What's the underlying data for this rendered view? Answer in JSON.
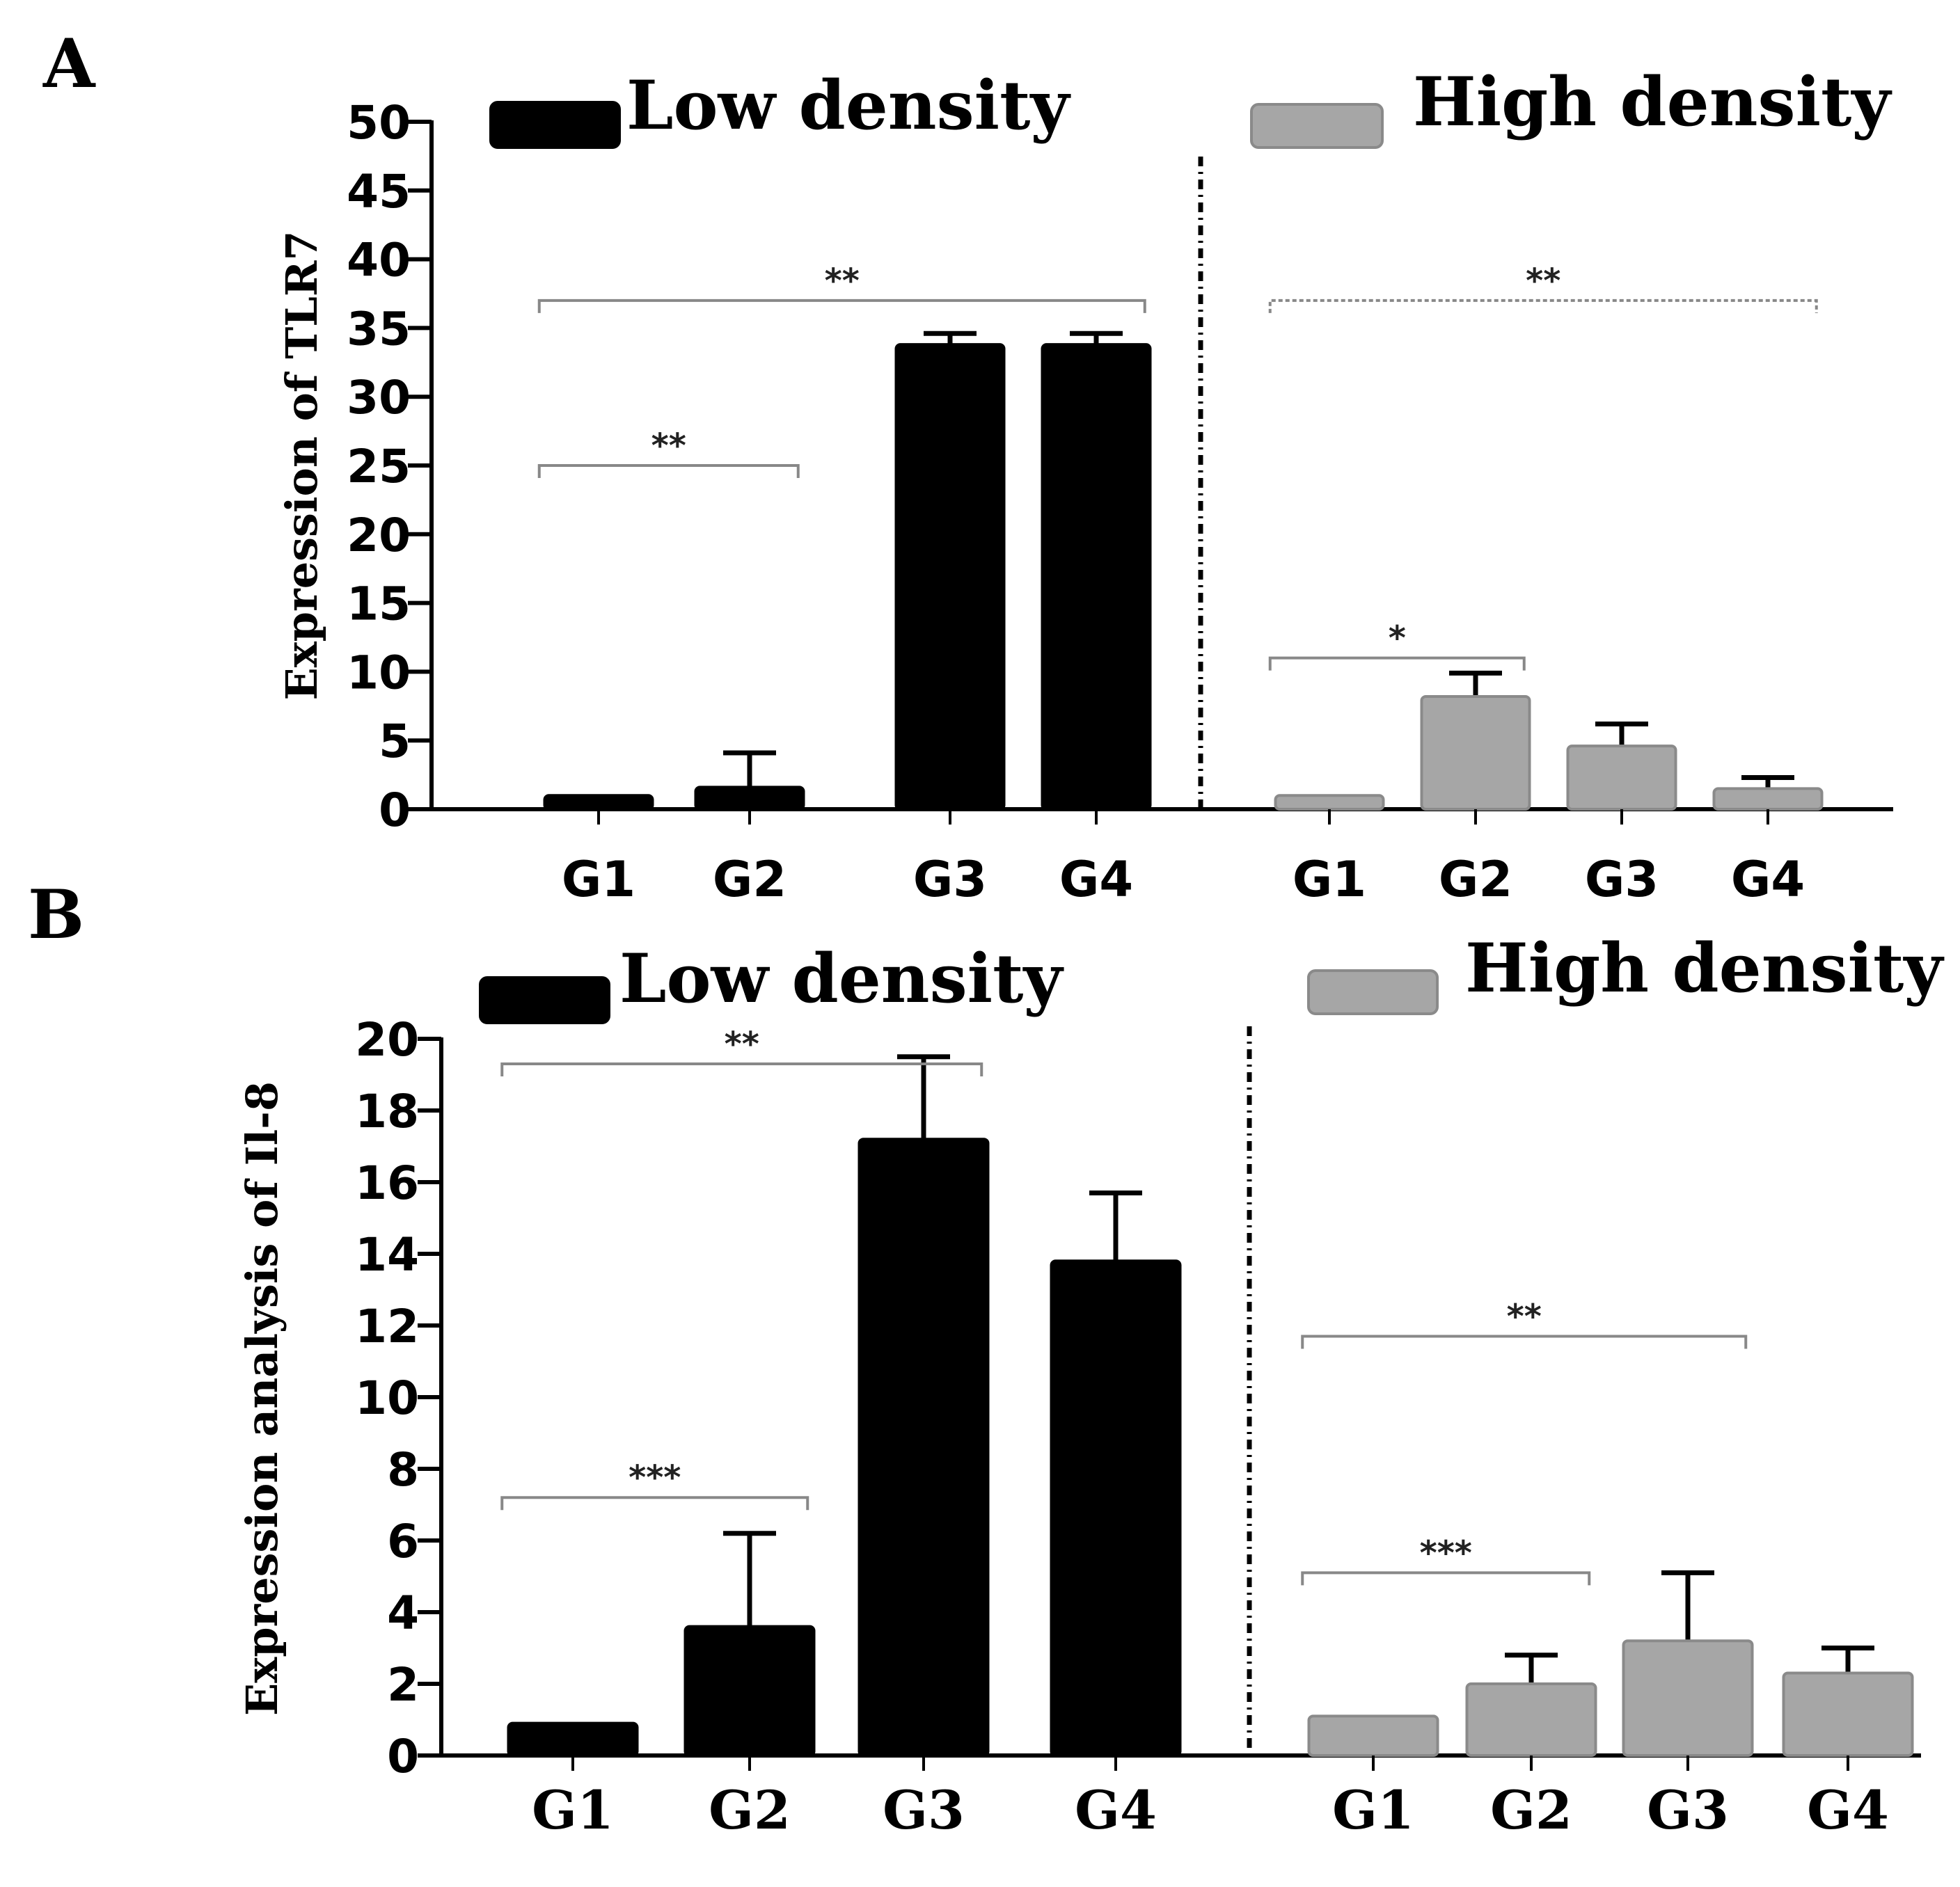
{
  "figure": {
    "colors": {
      "low": "#000000",
      "high": "#a6a6a6",
      "axis": "#000000",
      "bracket": "#888888"
    }
  },
  "chart_data": [
    {
      "id": "A",
      "type": "bar",
      "panel_label": "A",
      "ylabel": "Expression  of TLR7",
      "ylim": [
        0,
        50
      ],
      "yticks": [
        "0",
        "5",
        "10",
        "15",
        "20",
        "25",
        "30",
        "35",
        "40",
        "45",
        "50"
      ],
      "legend": [
        {
          "name": "Low density",
          "color": "#000000"
        },
        {
          "name": "High density",
          "color": "#a6a6a6"
        }
      ],
      "series": [
        {
          "name": "Low density",
          "categories": [
            "G1",
            "G2",
            "G3",
            "G4"
          ],
          "values": [
            1.0,
            1.6,
            33.8,
            33.8
          ],
          "errors": [
            0.0,
            2.5,
            0.8,
            0.8
          ]
        },
        {
          "name": "High density",
          "categories": [
            "G1",
            "G2",
            "G3",
            "G4"
          ],
          "values": [
            1.0,
            8.2,
            4.6,
            1.5
          ],
          "errors": [
            0.0,
            1.7,
            1.6,
            0.8
          ]
        }
      ],
      "significance": [
        {
          "series": "Low density",
          "from": "G1",
          "to": "G4",
          "level": 37,
          "label": "**"
        },
        {
          "series": "Low density",
          "from": "G1",
          "to": "G2",
          "level": 25,
          "label": "**"
        },
        {
          "series": "High density",
          "from": "G1",
          "to": "G4",
          "level": 37,
          "label": "**"
        },
        {
          "series": "High density",
          "from": "G1",
          "to": "G2",
          "level": 11,
          "label": "*"
        }
      ]
    },
    {
      "id": "B",
      "type": "bar",
      "panel_label": "B",
      "ylabel": "Expression analysis of Il-8",
      "ylim": [
        0,
        20
      ],
      "yticks": [
        "0",
        "2",
        "4",
        "6",
        "8",
        "10",
        "12",
        "14",
        "16",
        "18",
        "20"
      ],
      "legend": [
        {
          "name": "Low density",
          "color": "#000000"
        },
        {
          "name": "High density",
          "color": "#a6a6a6"
        }
      ],
      "series": [
        {
          "name": "Low density",
          "categories": [
            "G1",
            "G2",
            "G3",
            "G4"
          ],
          "values": [
            0.9,
            3.6,
            17.2,
            13.8
          ],
          "errors": [
            0.0,
            2.6,
            2.3,
            1.9
          ]
        },
        {
          "name": "High density",
          "categories": [
            "G1",
            "G2",
            "G3",
            "G4"
          ],
          "values": [
            1.1,
            2.0,
            3.2,
            2.3
          ],
          "errors": [
            0.0,
            0.8,
            1.9,
            0.7
          ]
        }
      ],
      "significance": [
        {
          "series": "Low density",
          "from": "G1",
          "to": "G3",
          "level": 19.3,
          "label": "**"
        },
        {
          "series": "Low density",
          "from": "G1",
          "to": "G2",
          "level": 7.2,
          "label": "***"
        },
        {
          "series": "High density",
          "from": "G1",
          "to": "G3",
          "level": 11.7,
          "label": "**"
        },
        {
          "series": "High density",
          "from": "G1",
          "to": "G2",
          "level": 5.1,
          "label": "***"
        }
      ]
    }
  ]
}
